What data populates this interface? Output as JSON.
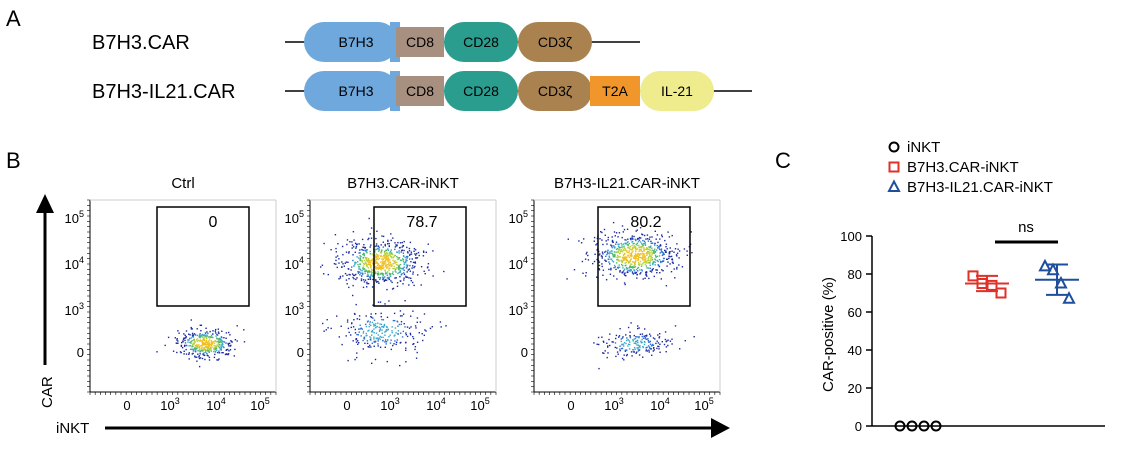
{
  "panels": {
    "a": "A",
    "b": "B",
    "c": "C"
  },
  "constructs": [
    {
      "name": "B7H3.CAR",
      "segments": [
        {
          "label": "B7H3",
          "color": "#6fa8dc"
        },
        {
          "label": "CD8",
          "color": "#a89080"
        },
        {
          "label": "CD28",
          "color": "#2a9d8f"
        },
        {
          "label": "CD3ζ",
          "color": "#a9824f"
        }
      ]
    },
    {
      "name": "B7H3-IL21.CAR",
      "segments": [
        {
          "label": "B7H3",
          "color": "#6fa8dc"
        },
        {
          "label": "CD8",
          "color": "#a89080"
        },
        {
          "label": "CD28",
          "color": "#2a9d8f"
        },
        {
          "label": "CD3ζ",
          "color": "#a9824f"
        },
        {
          "label": "T2A",
          "color": "#f0962a"
        },
        {
          "label": "IL-21",
          "color": "#eeec8c"
        }
      ]
    }
  ],
  "flow": {
    "y_axis_title": "CAR",
    "x_axis_title": "iNKT",
    "y_ticks": [
      "10",
      "10",
      "10",
      "0"
    ],
    "y_tick_exp": [
      "5",
      "4",
      "3",
      ""
    ],
    "x_ticks": [
      "0",
      "10",
      "10",
      "10"
    ],
    "x_tick_exp": [
      "",
      "3",
      "4",
      "5"
    ],
    "plots": [
      {
        "title": "Ctrl",
        "gate_value": "0"
      },
      {
        "title": "B7H3.CAR-iNKT",
        "gate_value": "78.7"
      },
      {
        "title": "B7H3-IL21.CAR-iNKT",
        "gate_value": "80.2"
      }
    ]
  },
  "chart_data": {
    "type": "scatter",
    "ylabel": "CAR-positive (%)",
    "ylim": [
      0,
      100
    ],
    "yticks": [
      "0",
      "20",
      "40",
      "60",
      "80",
      "100"
    ],
    "significance": "ns",
    "legend": [
      "iNKT",
      "B7H3.CAR-iNKT",
      "B7H3-IL21.CAR-iNKT"
    ],
    "series": [
      {
        "name": "iNKT",
        "color": "#000000",
        "marker": "circle",
        "values": [
          0,
          0,
          0,
          0
        ],
        "mean": 0,
        "sd": 0
      },
      {
        "name": "B7H3.CAR-iNKT",
        "color": "#e0302a",
        "marker": "square",
        "values": [
          79,
          75,
          74,
          70
        ],
        "mean": 75,
        "sd": 4
      },
      {
        "name": "B7H3-IL21.CAR-iNKT",
        "color": "#1f4e9c",
        "marker": "triangle",
        "values": [
          84,
          82,
          75,
          67
        ],
        "mean": 77,
        "sd": 8
      }
    ]
  }
}
